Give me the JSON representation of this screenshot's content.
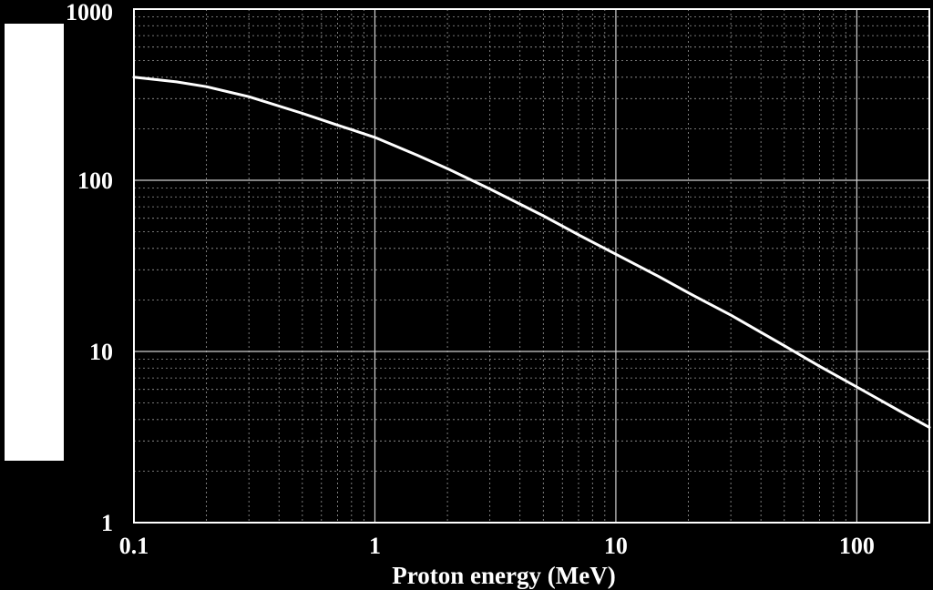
{
  "chart_data": {
    "type": "line",
    "title": "",
    "xlabel": "Proton energy (MeV)",
    "ylabel": "",
    "x_scale": "log",
    "y_scale": "log",
    "xlim": [
      0.1,
      200
    ],
    "ylim": [
      1,
      1000
    ],
    "x_ticks": [
      {
        "value": 0.1,
        "label": "0.1"
      },
      {
        "value": 1,
        "label": "1"
      },
      {
        "value": 10,
        "label": "10"
      },
      {
        "value": 100,
        "label": "100"
      }
    ],
    "y_ticks": [
      {
        "value": 1,
        "label": "1"
      },
      {
        "value": 10,
        "label": "10"
      },
      {
        "value": 100,
        "label": "100"
      },
      {
        "value": 1000,
        "label": "1000"
      }
    ],
    "grid": {
      "major": true,
      "minor": true
    },
    "colors": {
      "background": "#000000",
      "line": "#ffffff",
      "major_grid": "#d0d0d0",
      "minor_grid": "#9a9a9a"
    },
    "series": [
      {
        "x": [
          0.1,
          0.15,
          0.2,
          0.3,
          0.5,
          0.7,
          1,
          1.5,
          2,
          3,
          5,
          7,
          10,
          15,
          20,
          30,
          50,
          70,
          100,
          150,
          200
        ],
        "y": [
          400,
          376,
          352,
          308,
          246,
          210,
          178,
          140,
          117,
          89,
          62,
          48,
          37,
          27.5,
          22,
          16.3,
          10.8,
          8.2,
          6.2,
          4.5,
          3.6
        ]
      }
    ]
  }
}
